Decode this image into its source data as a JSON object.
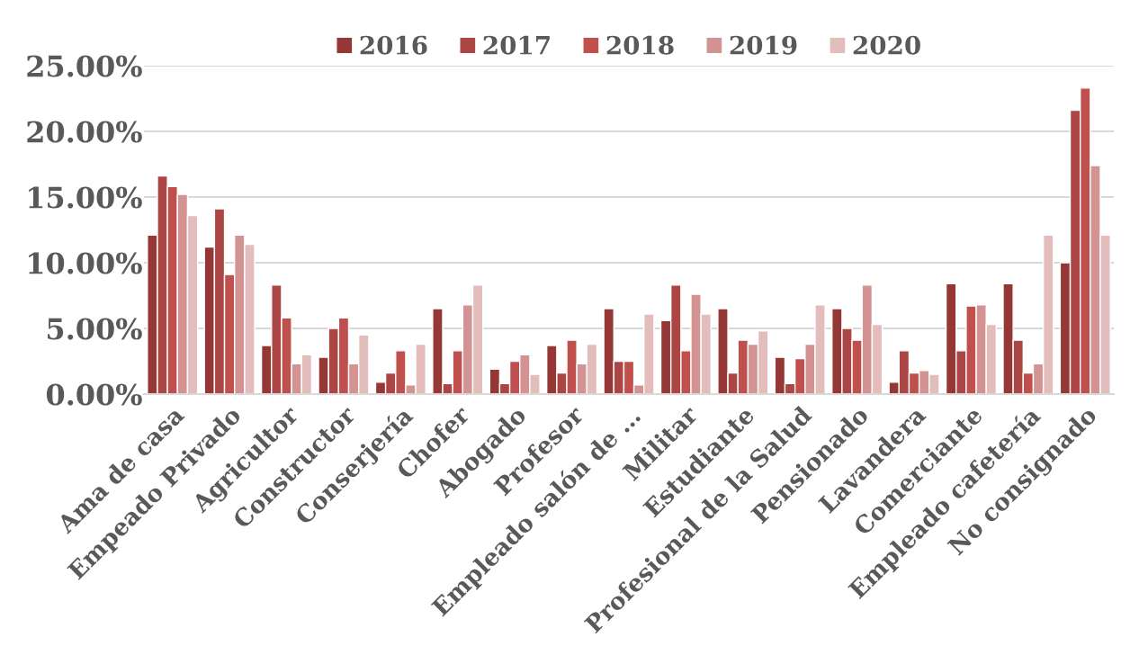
{
  "chart_data": {
    "type": "bar",
    "categories": [
      "Ama de casa",
      "Empeado Privado",
      "Agricultor",
      "Constructor",
      "Conserjería",
      "Chofer",
      "Abogado",
      "Profesor",
      "Empleado salón de …",
      "Militar",
      "Estudiante",
      "Profesional de la Salud",
      "Pensionado",
      "Lavandera",
      "Comerciante",
      "Empleado cafetería",
      "No consignado"
    ],
    "series": [
      {
        "name": "2016",
        "color": "#953735",
        "values": [
          12.1,
          11.2,
          3.7,
          2.8,
          0.9,
          6.5,
          1.9,
          3.7,
          6.5,
          5.6,
          6.5,
          2.8,
          6.5,
          0.9,
          8.4,
          8.4,
          10.0
        ]
      },
      {
        "name": "2017",
        "color": "#ac4644",
        "values": [
          16.6,
          14.1,
          8.3,
          5.0,
          1.6,
          0.8,
          0.8,
          1.6,
          2.5,
          8.3,
          1.6,
          0.8,
          5.0,
          3.3,
          3.3,
          4.1,
          21.6
        ]
      },
      {
        "name": "2018",
        "color": "#c0504d",
        "values": [
          15.8,
          9.1,
          5.8,
          5.8,
          3.3,
          3.3,
          2.5,
          4.1,
          2.5,
          3.3,
          4.1,
          2.7,
          4.1,
          1.6,
          6.7,
          1.6,
          23.3
        ]
      },
      {
        "name": "2019",
        "color": "#d49393",
        "values": [
          15.2,
          12.1,
          2.3,
          2.3,
          0.7,
          6.8,
          3.0,
          2.3,
          0.7,
          7.6,
          3.8,
          3.8,
          8.3,
          1.8,
          6.8,
          2.3,
          17.4
        ]
      },
      {
        "name": "2020",
        "color": "#e3bcbc",
        "values": [
          13.6,
          11.4,
          3.0,
          4.5,
          3.8,
          8.3,
          1.5,
          3.8,
          6.1,
          6.1,
          4.8,
          6.8,
          5.3,
          1.5,
          5.3,
          12.1,
          12.1
        ]
      }
    ],
    "ylim": [
      0,
      25
    ],
    "yticks": [
      {
        "value": 0,
        "label": "0.00%"
      },
      {
        "value": 5,
        "label": "5.00%"
      },
      {
        "value": 10,
        "label": "10.00%"
      },
      {
        "value": 15,
        "label": "15.00%"
      },
      {
        "value": 20,
        "label": "20.00%"
      },
      {
        "value": 25,
        "label": "25.00%"
      }
    ],
    "grid": "y",
    "legend": "top"
  }
}
